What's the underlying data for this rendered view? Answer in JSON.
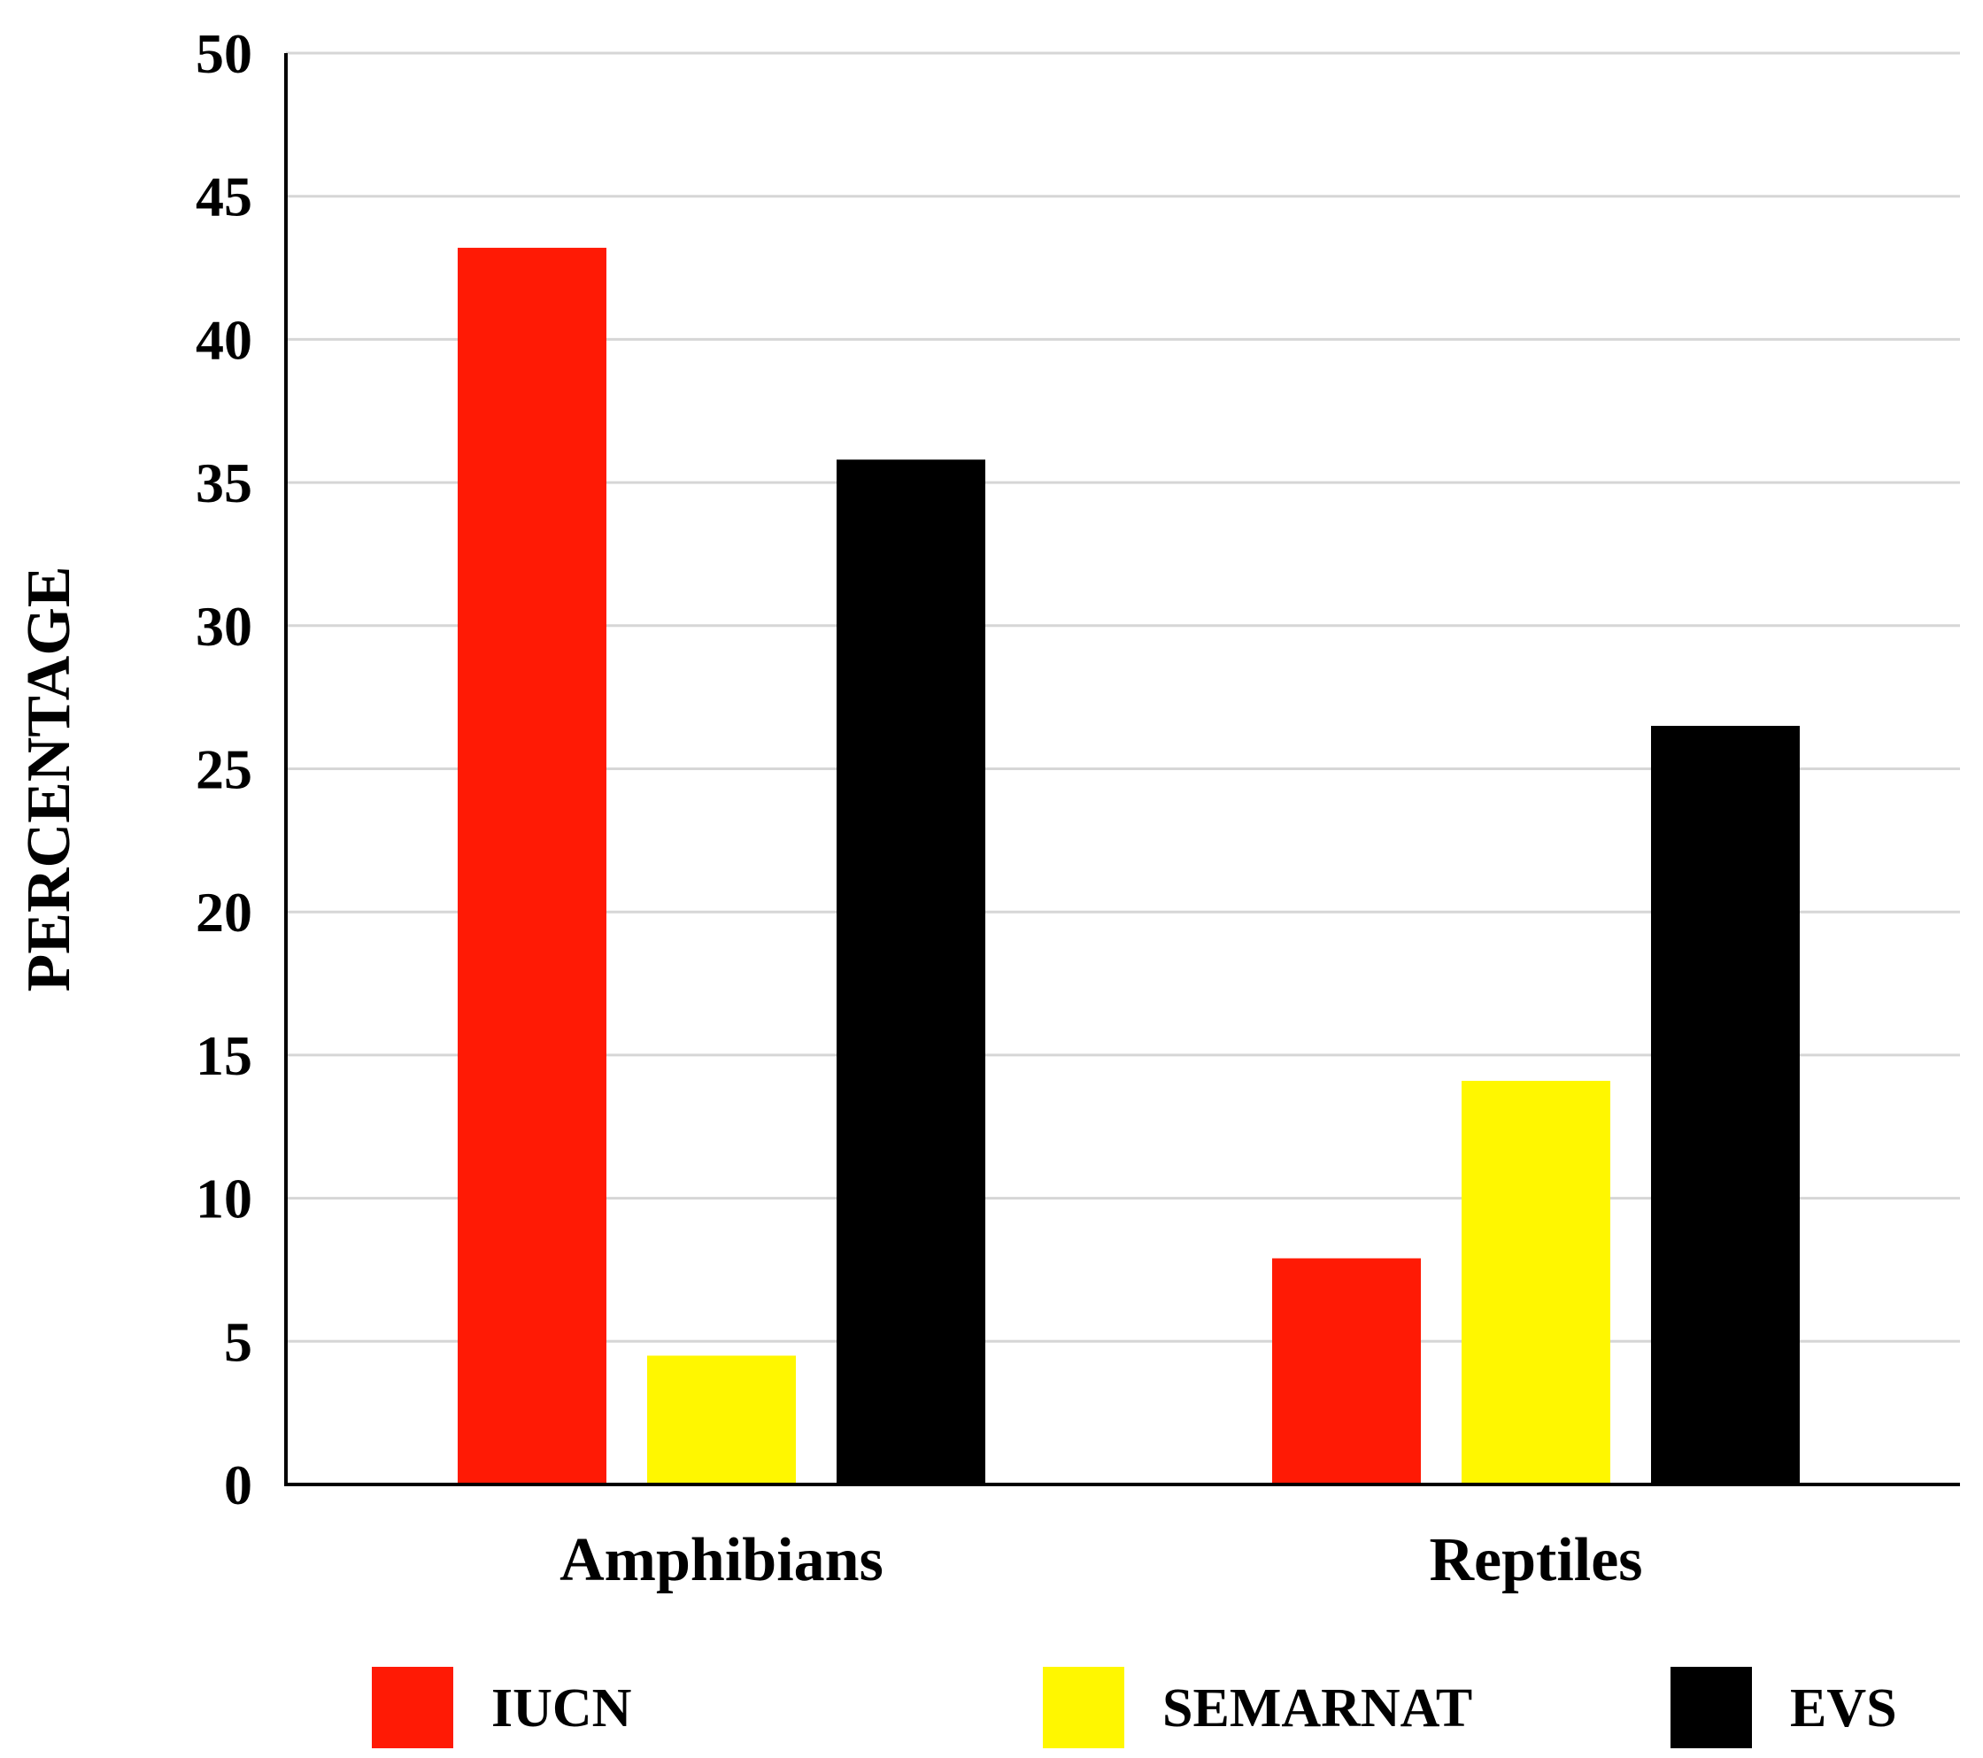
{
  "chart_data": {
    "type": "bar",
    "title": "",
    "xlabel": "",
    "ylabel": "PERCENTAGE",
    "ylim": [
      0,
      50
    ],
    "yticks": [
      "0",
      "5",
      "10",
      "15",
      "20",
      "25",
      "30",
      "35",
      "40",
      "45",
      "50"
    ],
    "categories": [
      "Amphibians",
      "Reptiles"
    ],
    "series": [
      {
        "name": "IUCN",
        "color": "#ff1a05",
        "values": [
          43.2,
          7.9
        ]
      },
      {
        "name": "SEMARNAT",
        "color": "#fff700",
        "values": [
          4.5,
          14.1
        ]
      },
      {
        "name": "EVS",
        "color": "#000000",
        "values": [
          35.8,
          26.5
        ]
      }
    ],
    "grid": true,
    "legend": "bottom"
  }
}
